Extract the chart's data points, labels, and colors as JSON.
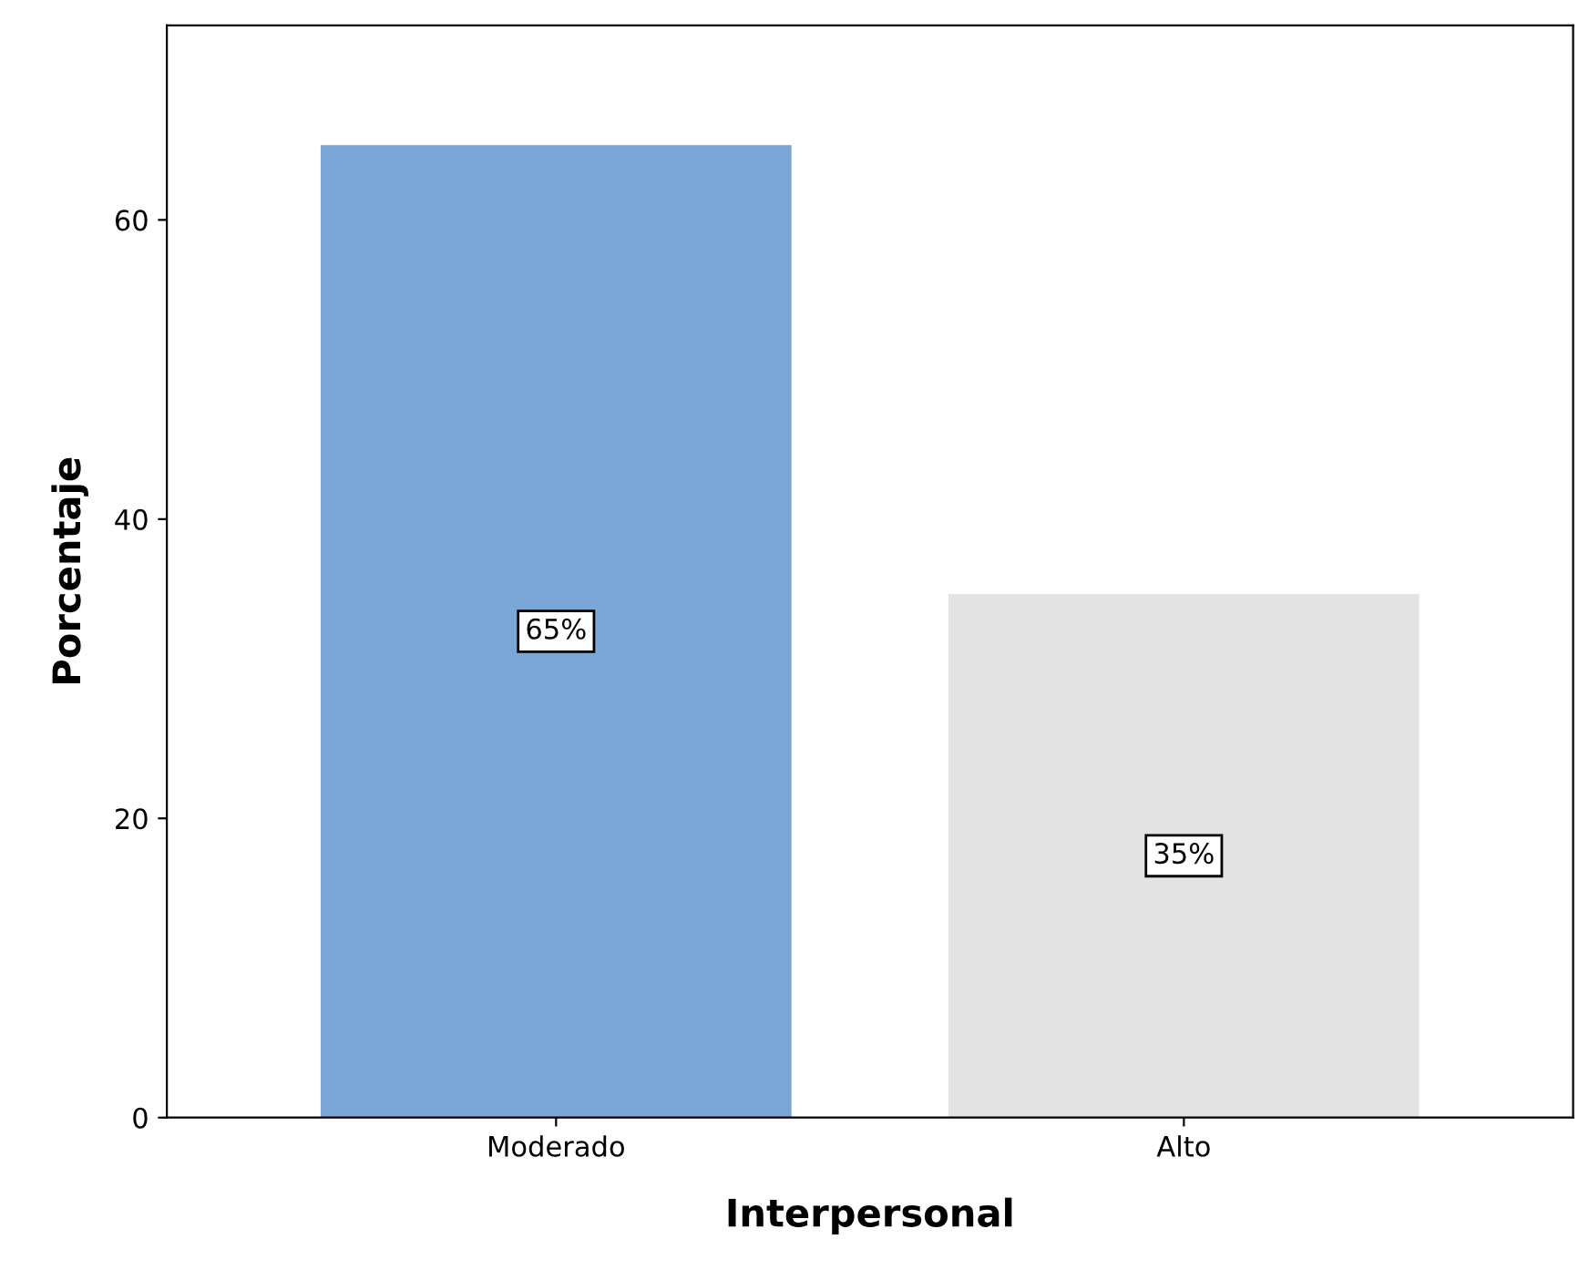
{
  "chart_data": {
    "type": "bar",
    "xlabel": "Interpersonal",
    "ylabel": "Porcentaje",
    "categories": [
      "Moderado",
      "Alto"
    ],
    "values": [
      65,
      35
    ],
    "colors": [
      "#7aa7d6",
      "#e3e3e3"
    ],
    "value_labels": [
      "65%",
      "35%"
    ],
    "ylim": [
      0,
      73
    ],
    "yticks": [
      0,
      20,
      40,
      60
    ],
    "grid": false
  }
}
